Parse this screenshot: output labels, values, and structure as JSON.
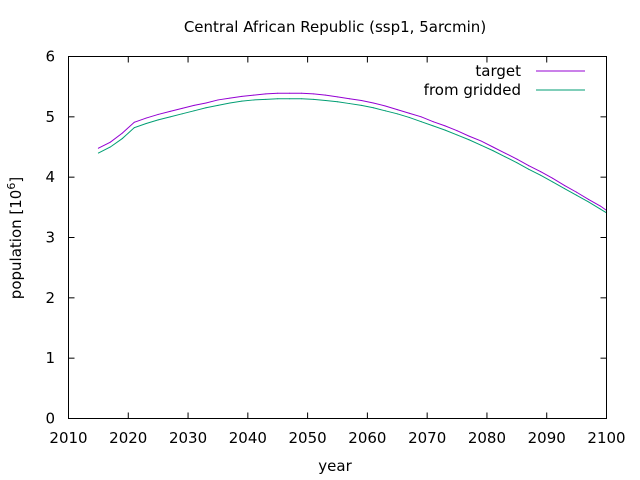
{
  "chart_data": {
    "type": "line",
    "title": "Central African Republic (ssp1, 5arcmin)",
    "xlabel": "year",
    "ylabel_main": "population [10",
    "ylabel_exp": "6",
    "ylabel_close": "]",
    "xlim": [
      2010,
      2100
    ],
    "ylim": [
      0,
      6
    ],
    "x_ticks": [
      "2010",
      "2020",
      "2030",
      "2040",
      "2050",
      "2060",
      "2070",
      "2080",
      "2090",
      "2100"
    ],
    "y_ticks": [
      "0",
      "1",
      "2",
      "3",
      "4",
      "5",
      "6"
    ],
    "grid": false,
    "legend_position": "top-right",
    "series": [
      {
        "name": "target",
        "color": "#9400d3",
        "points": [
          [
            2015,
            4.48
          ],
          [
            2017,
            4.58
          ],
          [
            2019,
            4.73
          ],
          [
            2021,
            4.91
          ],
          [
            2023,
            4.98
          ],
          [
            2025,
            5.04
          ],
          [
            2027,
            5.09
          ],
          [
            2029,
            5.14
          ],
          [
            2031,
            5.19
          ],
          [
            2033,
            5.23
          ],
          [
            2035,
            5.28
          ],
          [
            2037,
            5.31
          ],
          [
            2039,
            5.34
          ],
          [
            2041,
            5.36
          ],
          [
            2043,
            5.38
          ],
          [
            2045,
            5.39
          ],
          [
            2047,
            5.39
          ],
          [
            2049,
            5.39
          ],
          [
            2051,
            5.38
          ],
          [
            2053,
            5.36
          ],
          [
            2055,
            5.33
          ],
          [
            2057,
            5.3
          ],
          [
            2059,
            5.27
          ],
          [
            2061,
            5.23
          ],
          [
            2063,
            5.18
          ],
          [
            2065,
            5.12
          ],
          [
            2067,
            5.06
          ],
          [
            2069,
            5.0
          ],
          [
            2071,
            4.92
          ],
          [
            2073,
            4.85
          ],
          [
            2075,
            4.77
          ],
          [
            2077,
            4.68
          ],
          [
            2079,
            4.6
          ],
          [
            2081,
            4.5
          ],
          [
            2083,
            4.4
          ],
          [
            2085,
            4.3
          ],
          [
            2087,
            4.19
          ],
          [
            2089,
            4.09
          ],
          [
            2091,
            3.98
          ],
          [
            2093,
            3.86
          ],
          [
            2095,
            3.75
          ],
          [
            2097,
            3.63
          ],
          [
            2099,
            3.52
          ],
          [
            2100,
            3.45
          ]
        ]
      },
      {
        "name": "from gridded",
        "color": "#009e73",
        "points": [
          [
            2015,
            4.4
          ],
          [
            2017,
            4.5
          ],
          [
            2019,
            4.64
          ],
          [
            2021,
            4.82
          ],
          [
            2023,
            4.89
          ],
          [
            2025,
            4.95
          ],
          [
            2027,
            5.0
          ],
          [
            2029,
            5.05
          ],
          [
            2031,
            5.1
          ],
          [
            2033,
            5.15
          ],
          [
            2035,
            5.19
          ],
          [
            2037,
            5.23
          ],
          [
            2039,
            5.26
          ],
          [
            2041,
            5.28
          ],
          [
            2043,
            5.29
          ],
          [
            2045,
            5.3
          ],
          [
            2047,
            5.3
          ],
          [
            2049,
            5.3
          ],
          [
            2051,
            5.29
          ],
          [
            2053,
            5.27
          ],
          [
            2055,
            5.25
          ],
          [
            2057,
            5.22
          ],
          [
            2059,
            5.19
          ],
          [
            2061,
            5.15
          ],
          [
            2063,
            5.1
          ],
          [
            2065,
            5.05
          ],
          [
            2067,
            4.99
          ],
          [
            2069,
            4.92
          ],
          [
            2071,
            4.85
          ],
          [
            2073,
            4.78
          ],
          [
            2075,
            4.7
          ],
          [
            2077,
            4.62
          ],
          [
            2079,
            4.53
          ],
          [
            2081,
            4.44
          ],
          [
            2083,
            4.34
          ],
          [
            2085,
            4.24
          ],
          [
            2087,
            4.13
          ],
          [
            2089,
            4.03
          ],
          [
            2091,
            3.92
          ],
          [
            2093,
            3.81
          ],
          [
            2095,
            3.7
          ],
          [
            2097,
            3.59
          ],
          [
            2099,
            3.47
          ],
          [
            2100,
            3.41
          ]
        ]
      }
    ]
  }
}
